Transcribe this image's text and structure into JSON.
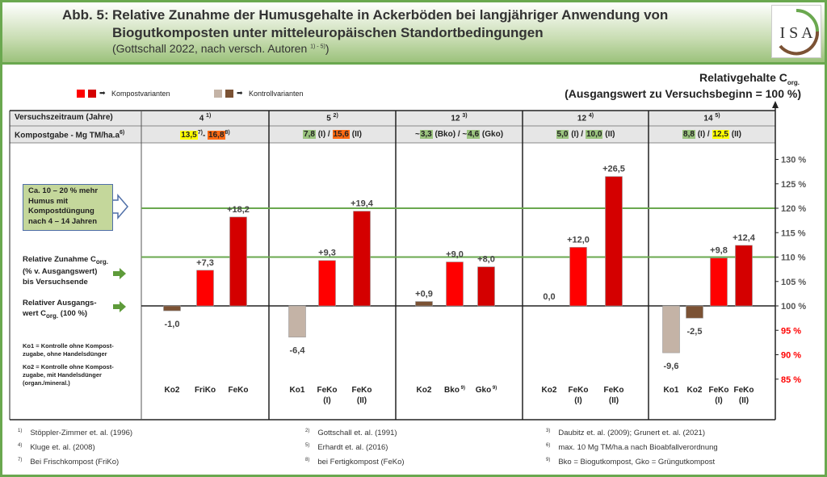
{
  "header": {
    "figure_label": "Abb. 5:",
    "title_line1": "Relative Zunahme der Humusgehalte in Ackerböden bei langjähriger Anwendung von",
    "title_line2": "Biogutkomposten unter mitteleuropäischen Standortbedingungen",
    "subtitle": "(Gottschall 2022, nach versch. Autoren",
    "subtitle_sup": "1) - 5)",
    "subtitle_end": ")",
    "logo_text": "ISA"
  },
  "legend": {
    "kompost": "Kompostvarianten",
    "kontroll": "Kontrollvarianten"
  },
  "axis_title": {
    "line1": "Relativgehalte C",
    "line1_sub": "org.",
    "line2": "(Ausgangswert zu Versuchsbeginn = 100 %)"
  },
  "table": {
    "row1_label": "Versuchszeitraum (Jahre)",
    "row2_label": "Kompostgabe - Mg TM/ha.a",
    "row2_sup": "6)",
    "periods": [
      {
        "value": "4",
        "sup": "1)"
      },
      {
        "value": "5",
        "sup": "2)"
      },
      {
        "value": "12",
        "sup": "3)"
      },
      {
        "value": "12",
        "sup": "4)"
      },
      {
        "value": "14",
        "sup": "5)"
      }
    ],
    "doses": [
      [
        {
          "t": "13,5",
          "bg": "#ffff00"
        },
        {
          "t": "7)",
          "sup": true
        },
        {
          "t": "- "
        },
        {
          "t": "16,8",
          "bg": "#ff6a13"
        },
        {
          "t": "8)",
          "sup": true
        }
      ],
      [
        {
          "t": "7,8",
          "bg": "#9bc47f"
        },
        {
          "t": " (I) / "
        },
        {
          "t": "15,6",
          "bg": "#ff6a13"
        },
        {
          "t": " (II)"
        }
      ],
      [
        {
          "t": "~"
        },
        {
          "t": "3,3",
          "bg": "#9bc47f"
        },
        {
          "t": " (Bko) / ~"
        },
        {
          "t": "4,6",
          "bg": "#9bc47f"
        },
        {
          "t": " (Gko)"
        }
      ],
      [
        {
          "t": "5,0",
          "bg": "#9bc47f"
        },
        {
          "t": " (I) / "
        },
        {
          "t": "10,0",
          "bg": "#9bc47f"
        },
        {
          "t": " (II)"
        }
      ],
      [
        {
          "t": "8,8",
          "bg": "#9bc47f"
        },
        {
          "t": " (I) / "
        },
        {
          "t": "12,5",
          "bg": "#ffff00"
        },
        {
          "t": " (II)"
        }
      ]
    ]
  },
  "annotations": {
    "box": [
      "Ca. 10 – 20 % mehr",
      "Humus mit",
      "Kompostdüngung",
      "nach 4 – 14 Jahren"
    ],
    "zunahme_1": "Relative Zunahme C",
    "zunahme_1_sub": "org.",
    "zunahme_2": "(% v. Ausgangswert)",
    "zunahme_3": "bis Versuchsende",
    "ausgang_1": "Relativer Ausgangs-",
    "ausgang_2": "wert C",
    "ausgang_2_sub": "org.",
    "ausgang_2_end": " (100 %)",
    "ko1": [
      "Ko1 = Kontrolle ohne Kompost-",
      "zugabe, ohne Handelsdünger"
    ],
    "ko2": [
      "Ko2 = Kontrolle ohne Kompost-",
      "zugabe, mit Handelsdünger",
      "(organ./mineral.)"
    ]
  },
  "colors": {
    "frisch": "#ff0000",
    "fertig": "#d40000",
    "ko1": "#c4b3a6",
    "ko2": "#7b5234",
    "reference_lines": "#6aa84f",
    "negative_ticks": "#ff0000"
  },
  "chart_data": {
    "type": "bar",
    "baseline": 100,
    "ylim": [
      85,
      130
    ],
    "yticks": [
      {
        "v": 130,
        "label": "130 %"
      },
      {
        "v": 125,
        "label": "125 %"
      },
      {
        "v": 120,
        "label": "120 %"
      },
      {
        "v": 115,
        "label": "115 %"
      },
      {
        "v": 110,
        "label": "110 %"
      },
      {
        "v": 105,
        "label": "105 %"
      },
      {
        "v": 100,
        "label": "100 %"
      },
      {
        "v": 95,
        "label": "95 %"
      },
      {
        "v": 90,
        "label": "90 %"
      },
      {
        "v": 85,
        "label": "85 %"
      }
    ],
    "reference_lines": [
      110,
      120
    ],
    "groups": [
      {
        "bars": [
          {
            "cat": "Ko2",
            "value": -1.0,
            "label": "-1,0",
            "kind": "ko2"
          },
          {
            "cat": "FriKo",
            "value": 7.3,
            "label": "+7,3",
            "kind": "frisch"
          },
          {
            "cat": "FeKo",
            "value": 18.2,
            "label": "+18,2",
            "kind": "fertig"
          }
        ]
      },
      {
        "bars": [
          {
            "cat": "Ko1",
            "value": -6.4,
            "label": "-6,4",
            "kind": "ko1"
          },
          {
            "cat": "FeKo",
            "cat2": "(I)",
            "value": 9.3,
            "label": "+9,3",
            "kind": "frisch"
          },
          {
            "cat": "FeKo",
            "cat2": "(II)",
            "value": 19.4,
            "label": "+19,4",
            "kind": "fertig"
          }
        ]
      },
      {
        "bars": [
          {
            "cat": "Ko2",
            "value": 0.9,
            "label": "+0,9",
            "kind": "ko2"
          },
          {
            "cat": "Bko",
            "sup": "9)",
            "value": 9.0,
            "label": "+9,0",
            "kind": "frisch"
          },
          {
            "cat": "Gko",
            "sup": "9)",
            "value": 8.0,
            "label": "+8,0",
            "kind": "fertig"
          }
        ]
      },
      {
        "bars": [
          {
            "cat": "Ko2",
            "value": 0.0,
            "label": "0,0",
            "kind": "ko2"
          },
          {
            "cat": "FeKo",
            "cat2": "(I)",
            "value": 12.0,
            "label": "+12,0",
            "kind": "frisch"
          },
          {
            "cat": "FeKo",
            "cat2": "(II)",
            "value": 26.5,
            "label": "+26,5",
            "kind": "fertig"
          }
        ]
      },
      {
        "bars": [
          {
            "cat": "Ko1",
            "value": -9.6,
            "label": "-9,6",
            "kind": "ko1"
          },
          {
            "cat": "Ko2",
            "value": -2.5,
            "label": "-2,5",
            "kind": "ko2"
          },
          {
            "cat": "FeKo",
            "cat2": "(I)",
            "value": 9.8,
            "label": "+9,8",
            "kind": "frisch"
          },
          {
            "cat": "FeKo",
            "cat2": "(II)",
            "value": 12.4,
            "label": "+12,4",
            "kind": "fertig"
          }
        ]
      }
    ]
  },
  "footnotes": [
    {
      "n": "1)",
      "t": "Stöppler-Zimmer et. al. (1996)"
    },
    {
      "n": "2)",
      "t": "Gottschall et. al. (1991)"
    },
    {
      "n": "3)",
      "t": "Daubitz et. al. (2009); Grunert et. al. (2021)"
    },
    {
      "n": "4)",
      "t": "Kluge et. al. (2008)"
    },
    {
      "n": "5)",
      "t": "Erhardt et. al. (2016)"
    },
    {
      "n": "6)",
      "t": "max. 10 Mg TM/ha.a nach Bioabfallverordnung"
    },
    {
      "n": "7)",
      "t": "Bei Frischkompost (FriKo)"
    },
    {
      "n": "8)",
      "t": "bei Fertigkompost (FeKo)"
    },
    {
      "n": "9)",
      "t": "Bko = Biogutkompost, Gko = Grüngutkompost"
    }
  ]
}
